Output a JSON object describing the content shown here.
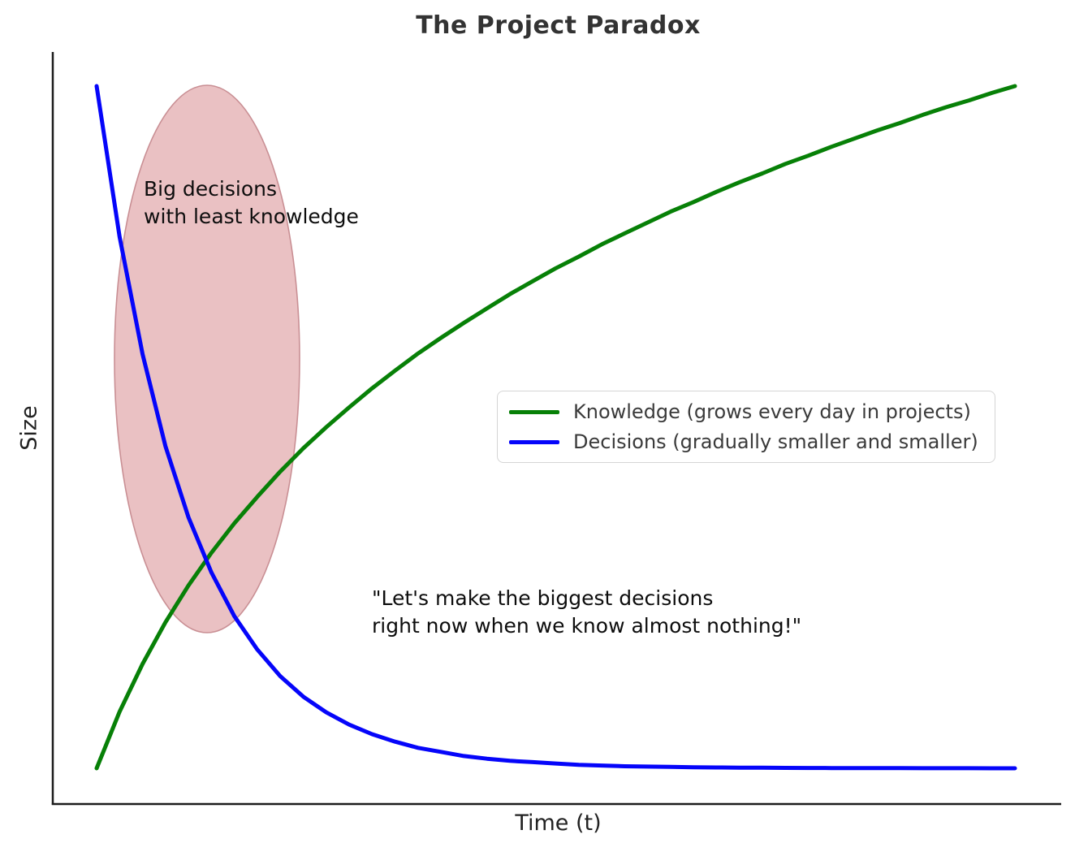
{
  "chart_data": {
    "type": "line",
    "title": "The Project Paradox",
    "xlabel": "Time (t)",
    "ylabel": "Size",
    "xlim": [
      0,
      1
    ],
    "ylim": [
      0,
      1
    ],
    "grid": false,
    "legend_position": "center right",
    "x": [
      0,
      0.025,
      0.05,
      0.075,
      0.1,
      0.125,
      0.15,
      0.175,
      0.2,
      0.225,
      0.25,
      0.275,
      0.3,
      0.325,
      0.35,
      0.375,
      0.4,
      0.425,
      0.45,
      0.475,
      0.5,
      0.525,
      0.55,
      0.575,
      0.6,
      0.625,
      0.65,
      0.675,
      0.7,
      0.725,
      0.75,
      0.775,
      0.8,
      0.825,
      0.85,
      0.875,
      0.9,
      0.925,
      0.95,
      0.975,
      1.0
    ],
    "series": [
      {
        "name": "Knowledge (grows every day in projects)",
        "color": "#078007",
        "values": [
          0,
          0.083,
          0.153,
          0.214,
          0.268,
          0.316,
          0.359,
          0.398,
          0.435,
          0.469,
          0.5,
          0.529,
          0.557,
          0.583,
          0.608,
          0.631,
          0.653,
          0.674,
          0.695,
          0.714,
          0.733,
          0.75,
          0.768,
          0.784,
          0.8,
          0.816,
          0.83,
          0.845,
          0.859,
          0.872,
          0.886,
          0.898,
          0.911,
          0.923,
          0.935,
          0.946,
          0.958,
          0.969,
          0.979,
          0.99,
          1.0
        ]
      },
      {
        "name": "Decisions (gradually smaller and smaller)",
        "color": "#0505fa",
        "values": [
          1.0,
          0.779,
          0.607,
          0.472,
          0.368,
          0.287,
          0.223,
          0.174,
          0.135,
          0.105,
          0.082,
          0.064,
          0.05,
          0.039,
          0.03,
          0.024,
          0.018,
          0.014,
          0.011,
          0.009,
          0.007,
          0.005,
          0.004,
          0.003,
          0.0025,
          0.002,
          0.0015,
          0.0012,
          0.001,
          0.0008,
          0.0006,
          0.0005,
          0.0004,
          0.0003,
          0.0002,
          0.0002,
          0.0001,
          0.0001,
          0.0001,
          0.0,
          0.0
        ]
      }
    ],
    "annotations": {
      "highlight": {
        "lines": [
          "Big decisions",
          "with least knowledge"
        ],
        "ellipse_fill": "rgba(202,100,106,0.4)",
        "ellipse_border": "#c98f94"
      },
      "quote": {
        "lines": [
          "\"Let's make the biggest decisions",
          "right now when we know almost nothing!\""
        ]
      }
    },
    "axis_color": "#1c1c1c"
  }
}
